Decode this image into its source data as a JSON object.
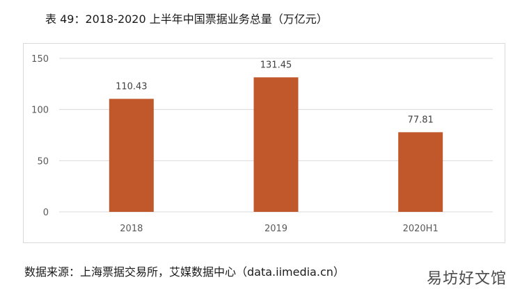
{
  "title": "表 49：2018-2020 上半年中国票据业务总量（万亿元）",
  "source": "数据来源：上海票据交易所，艾媒数据中心（data.iimedia.cn）",
  "watermark": "易坊好文馆",
  "chart_data": {
    "type": "bar",
    "title": "表 49：2018-2020 上半年中国票据业务总量（万亿元）",
    "categories": [
      "2018",
      "2019",
      "2020H1"
    ],
    "values": [
      110.43,
      131.45,
      77.81
    ],
    "data_labels": [
      "110.43",
      "131.45",
      "77.81"
    ],
    "ylim": [
      0,
      150
    ],
    "yticks": [
      0,
      50,
      100,
      150
    ],
    "grid": true,
    "bar_color": "#c0582b",
    "grid_color": "#d9d9d9"
  }
}
